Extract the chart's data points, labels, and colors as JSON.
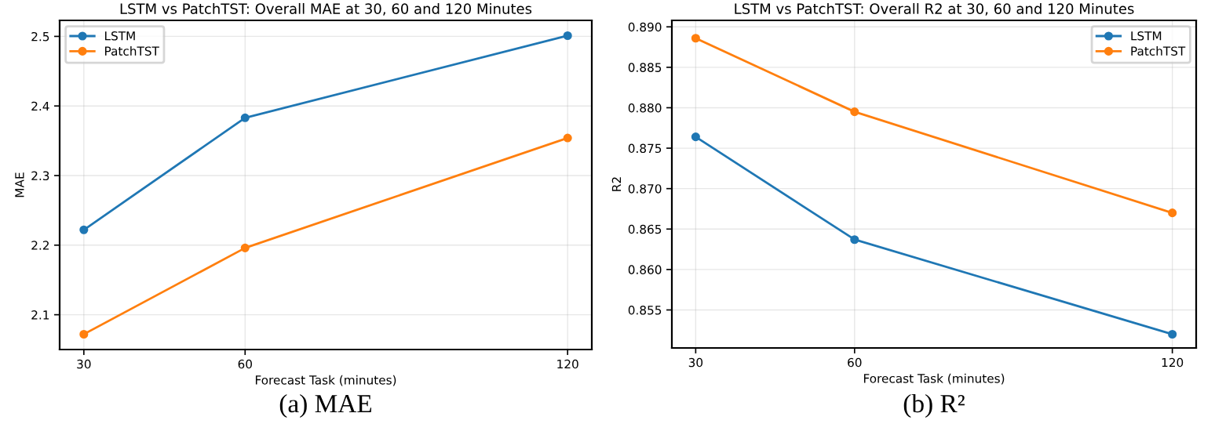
{
  "chart_data": [
    {
      "type": "line",
      "title": "LSTM vs PatchTST: Overall MAE at 30, 60 and 120 Minutes",
      "xlabel": "Forecast Task (minutes)",
      "ylabel": "MAE",
      "x": [
        30,
        60,
        120
      ],
      "series": [
        {
          "name": "LSTM",
          "color": "#1f77b4",
          "values": [
            2.222,
            2.383,
            2.501
          ]
        },
        {
          "name": "PatchTST",
          "color": "#ff7f0e",
          "values": [
            2.072,
            2.196,
            2.354
          ]
        }
      ],
      "xlim": [
        25.5,
        124.5
      ],
      "xticks": [
        30,
        60,
        120
      ],
      "ylim": [
        2.05,
        2.523
      ],
      "yticks": [
        2.1,
        2.2,
        2.3,
        2.4,
        2.5
      ],
      "grid": true,
      "legend": "top left",
      "marker": "circle",
      "line_style": "solid",
      "annotations": [
        "(a) MAE"
      ]
    },
    {
      "type": "line",
      "title": "LSTM vs PatchTST: Overall R2 at 30, 60 and 120 Minutes",
      "xlabel": "Forecast Task (minutes)",
      "ylabel": "R2",
      "x": [
        30,
        60,
        120
      ],
      "series": [
        {
          "name": "LSTM",
          "color": "#1f77b4",
          "values": [
            0.8764,
            0.8637,
            0.852
          ]
        },
        {
          "name": "PatchTST",
          "color": "#ff7f0e",
          "values": [
            0.8886,
            0.8795,
            0.867
          ]
        }
      ],
      "xlim": [
        25.5,
        124.5
      ],
      "xticks": [
        30,
        60,
        120
      ],
      "ylim": [
        0.8503,
        0.8908
      ],
      "yticks": [
        0.855,
        {
          "value": 0.86,
          "label": "0.860"
        },
        0.865,
        {
          "value": 0.87,
          "label": "0.870"
        },
        0.875,
        {
          "value": 0.88,
          "label": "0.880"
        },
        0.885,
        {
          "value": 0.89,
          "label": "0.890"
        }
      ],
      "grid": true,
      "legend": "top right",
      "marker": "circle",
      "line_style": "solid",
      "annotations": [
        "(b) R²"
      ]
    }
  ]
}
